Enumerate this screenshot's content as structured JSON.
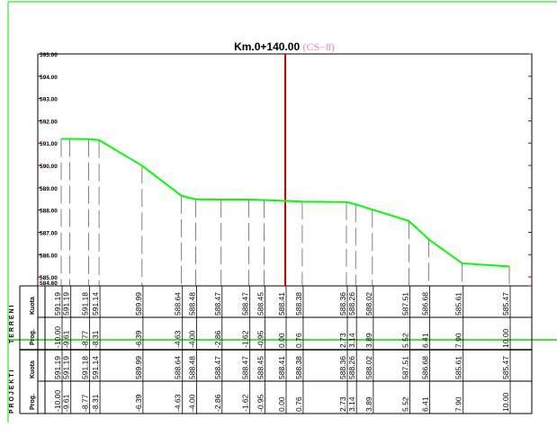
{
  "title": {
    "main": "Km.0+140.00",
    "tag": "(CS−8)"
  },
  "colors": {
    "profile": "#00ff00",
    "axis": "#d40000",
    "tag": "#e080e0",
    "viewport": "#00e000",
    "frame": "#000000"
  },
  "y_axis": {
    "labels": [
      "595.00",
      "594.00",
      "593.00",
      "592.00",
      "591.00",
      "590.00",
      "589.00",
      "588.00",
      "587.00",
      "586.00",
      "585.00",
      "584.60"
    ]
  },
  "groups": {
    "terreni": "T E R R E N I",
    "projekti": "P R O J E K T I"
  },
  "row_labels": {
    "kuota": "Kuota",
    "prog": "Prog."
  },
  "chart_data": {
    "type": "line",
    "title": "Km.0+140.00",
    "ylim": [
      584.6,
      595.0
    ],
    "xlim": [
      -11.0,
      10.5
    ],
    "centerline_x": 0.0,
    "grid": false,
    "series": [
      {
        "x": [
          -10.0,
          -9.61,
          -8.77,
          -8.31,
          -6.39,
          -4.63,
          -4.0,
          -2.86,
          -1.62,
          -0.95,
          0.0,
          0.76,
          2.73,
          3.14,
          3.89,
          5.52,
          6.41,
          7.9,
          10.0
        ],
        "y": [
          591.19,
          591.19,
          591.18,
          591.14,
          589.99,
          588.64,
          588.48,
          588.47,
          588.47,
          588.45,
          588.41,
          588.38,
          588.36,
          588.26,
          588.02,
          587.51,
          586.68,
          585.61,
          585.47
        ]
      }
    ]
  },
  "table": {
    "terreni_kuota": [
      "591.19",
      "591.19",
      "591.18",
      "591.14",
      "589.99",
      "588.64",
      "588.48",
      "588.47",
      "588.47",
      "588.45",
      "588.41",
      "588.38",
      "588.36",
      "588.26",
      "588.02",
      "587.51",
      "586.68",
      "585.61",
      "585.47"
    ],
    "terreni_prog": [
      "-10.00",
      "-9.61",
      "-8.77",
      "-8.31",
      "-6.39",
      "-4.63",
      "-4.00",
      "-2.86",
      "-1.62",
      "-0.95",
      "0.00",
      "0.76",
      "2.73",
      "3.14",
      "3.89",
      "5.52",
      "6.41",
      "7.90",
      "10.00"
    ],
    "projekti_kuota": [
      "591.19",
      "591.19",
      "591.18",
      "591.14",
      "589.99",
      "588.64",
      "588.48",
      "588.47",
      "588.47",
      "588.45",
      "588.41",
      "588.38",
      "588.36",
      "588.26",
      "588.02",
      "587.51",
      "586.68",
      "585.61",
      "585.47"
    ],
    "projekti_prog": [
      "-10.00",
      "-9.61",
      "-8.77",
      "-8.31",
      "-6.39",
      "-4.63",
      "-4.00",
      "-2.86",
      "-1.62",
      "-0.95",
      "0.00",
      "0.76",
      "2.73",
      "3.14",
      "3.89",
      "5.52",
      "6.41",
      "7.90",
      "10.00"
    ]
  }
}
